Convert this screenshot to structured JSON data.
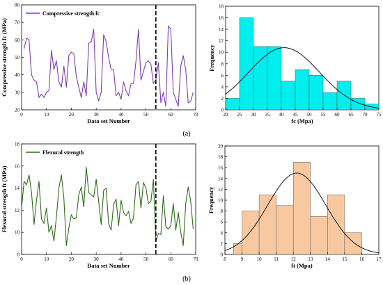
{
  "chart_data": [
    {
      "id": "a-left",
      "type": "line",
      "xlabel": "Data set Number",
      "ylabel": "Compressive strength fc (MPa)",
      "xlim": [
        0,
        70
      ],
      "ylim": [
        20,
        80
      ],
      "xticks": [
        0,
        10,
        20,
        30,
        40,
        50,
        60,
        70
      ],
      "yticks": [
        20,
        30,
        40,
        50,
        60,
        70,
        80
      ],
      "grid": false,
      "legend_position": "top-left",
      "divider_x": 54,
      "color": "#7b3fb3",
      "series": [
        {
          "name": "Compressive strength fc",
          "x": [
            1,
            2,
            3,
            4,
            5,
            6,
            7,
            8,
            9,
            10,
            11,
            12,
            13,
            14,
            15,
            16,
            17,
            18,
            19,
            20,
            21,
            22,
            23,
            24,
            25,
            26,
            27,
            28,
            29,
            30,
            31,
            32,
            33,
            34,
            35,
            36,
            37,
            38,
            39,
            40,
            41,
            42,
            43,
            44,
            45,
            46,
            47,
            48,
            49,
            50,
            51,
            52,
            53,
            54,
            55,
            56,
            57,
            58,
            59,
            60,
            61,
            62,
            63,
            64,
            65,
            66,
            67,
            68,
            69
          ],
          "values": [
            55,
            61,
            60,
            40,
            37,
            36,
            27,
            29,
            27,
            30,
            31,
            54,
            43,
            48,
            36,
            33,
            45,
            33,
            51,
            53,
            52,
            39,
            33,
            27,
            36,
            28,
            58,
            59,
            66,
            30,
            25,
            30,
            63,
            59,
            50,
            43,
            43,
            28,
            30,
            26,
            36,
            31,
            28,
            35,
            35,
            48,
            66,
            37,
            42,
            47,
            48,
            46,
            35,
            37,
            47,
            24,
            30,
            22,
            68,
            66,
            30,
            26,
            22,
            45,
            51,
            43,
            24,
            25,
            30
          ]
        }
      ]
    },
    {
      "id": "a-right",
      "type": "bar",
      "xlabel": "fc (Mpa)",
      "ylabel": "Frequency",
      "xlim": [
        20,
        75
      ],
      "ylim": [
        0,
        18
      ],
      "xticks": [
        20,
        25,
        30,
        35,
        40,
        45,
        50,
        55,
        60,
        65,
        70,
        75
      ],
      "yticks": [
        0,
        2,
        4,
        6,
        8,
        10,
        12,
        14,
        16,
        18
      ],
      "grid": false,
      "bar_color": "#00eeee",
      "bins": [
        [
          20,
          25
        ],
        [
          25,
          30
        ],
        [
          30,
          35
        ],
        [
          35,
          40
        ],
        [
          40,
          45
        ],
        [
          45,
          50
        ],
        [
          50,
          55
        ],
        [
          55,
          60
        ],
        [
          60,
          65
        ],
        [
          65,
          70
        ],
        [
          70,
          75
        ]
      ],
      "values": [
        2,
        16,
        11,
        11,
        5,
        7,
        6,
        3,
        5,
        2,
        1
      ],
      "fit_curve": {
        "type": "normal",
        "mean": 41,
        "peak": 10.8,
        "sigma": 12.7
      }
    },
    {
      "id": "b-left",
      "type": "line",
      "xlabel": "Data set Number",
      "ylabel": "Flexural strength ft (MPa)",
      "xlim": [
        0,
        70
      ],
      "ylim": [
        8,
        18
      ],
      "xticks": [
        0,
        10,
        20,
        30,
        40,
        50,
        60,
        70
      ],
      "yticks": [
        8,
        10,
        12,
        14,
        16,
        18
      ],
      "grid": false,
      "legend_position": "top-left",
      "divider_x": 54,
      "color": "#2e6b1a",
      "series": [
        {
          "name": "Flexural strength",
          "x": [
            0,
            1,
            2,
            3,
            4,
            5,
            6,
            7,
            8,
            9,
            10,
            11,
            12,
            13,
            14,
            15,
            16,
            17,
            18,
            19,
            20,
            21,
            22,
            23,
            24,
            25,
            26,
            27,
            28,
            29,
            30,
            31,
            32,
            33,
            34,
            35,
            36,
            37,
            38,
            39,
            40,
            41,
            42,
            43,
            44,
            45,
            46,
            47,
            48,
            49,
            50,
            51,
            52,
            53,
            54,
            55,
            56,
            57,
            58,
            59,
            60,
            61,
            62,
            63,
            64,
            65,
            66,
            67,
            68,
            69
          ],
          "values": [
            12.2,
            14.6,
            14.3,
            15.2,
            13.6,
            10.7,
            12.9,
            14.6,
            11.2,
            10.8,
            12.2,
            10.0,
            10.6,
            9.2,
            11.4,
            14.0,
            15.2,
            13.1,
            8.8,
            10.4,
            11.6,
            11.2,
            11.3,
            13.4,
            14.1,
            12.3,
            15.9,
            13.6,
            13.4,
            13.2,
            14.8,
            12.8,
            10.7,
            13.8,
            14.0,
            10.8,
            10.2,
            12.5,
            13.0,
            10.6,
            12.9,
            11.8,
            11.5,
            11.9,
            10.8,
            11.3,
            14.3,
            14.6,
            12.2,
            14.5,
            14.0,
            12.6,
            12.8,
            14.8,
            9.2,
            9.9,
            9.8,
            13.3,
            10.5,
            10.3,
            10.6,
            12.6,
            10.2,
            11.8,
            10.0,
            8.8,
            12.6,
            14.1,
            12.8,
            10.3
          ]
        }
      ]
    },
    {
      "id": "b-right",
      "type": "bar",
      "xlabel": "ft  (Mpa)",
      "ylabel": "Frequency",
      "xlim": [
        8,
        17
      ],
      "ylim": [
        0,
        20
      ],
      "xticks": [
        8,
        9,
        10,
        11,
        12,
        13,
        14,
        15,
        16,
        17
      ],
      "yticks": [
        0,
        2,
        4,
        6,
        8,
        10,
        12,
        14,
        16,
        18,
        20
      ],
      "grid": false,
      "bar_color": "#f8c9a0",
      "bins": [
        [
          8.5,
          9
        ],
        [
          9,
          10
        ],
        [
          10,
          11
        ],
        [
          11,
          12
        ],
        [
          12,
          13
        ],
        [
          13,
          14
        ],
        [
          14,
          15
        ],
        [
          15,
          16
        ]
      ],
      "values": [
        2,
        8,
        11,
        9,
        17,
        7,
        11,
        4
      ],
      "fit_curve": {
        "type": "normal",
        "mean": 12.2,
        "peak": 15.0,
        "sigma": 1.7
      }
    }
  ],
  "panel_labels": [
    "(a)",
    "(b)"
  ]
}
